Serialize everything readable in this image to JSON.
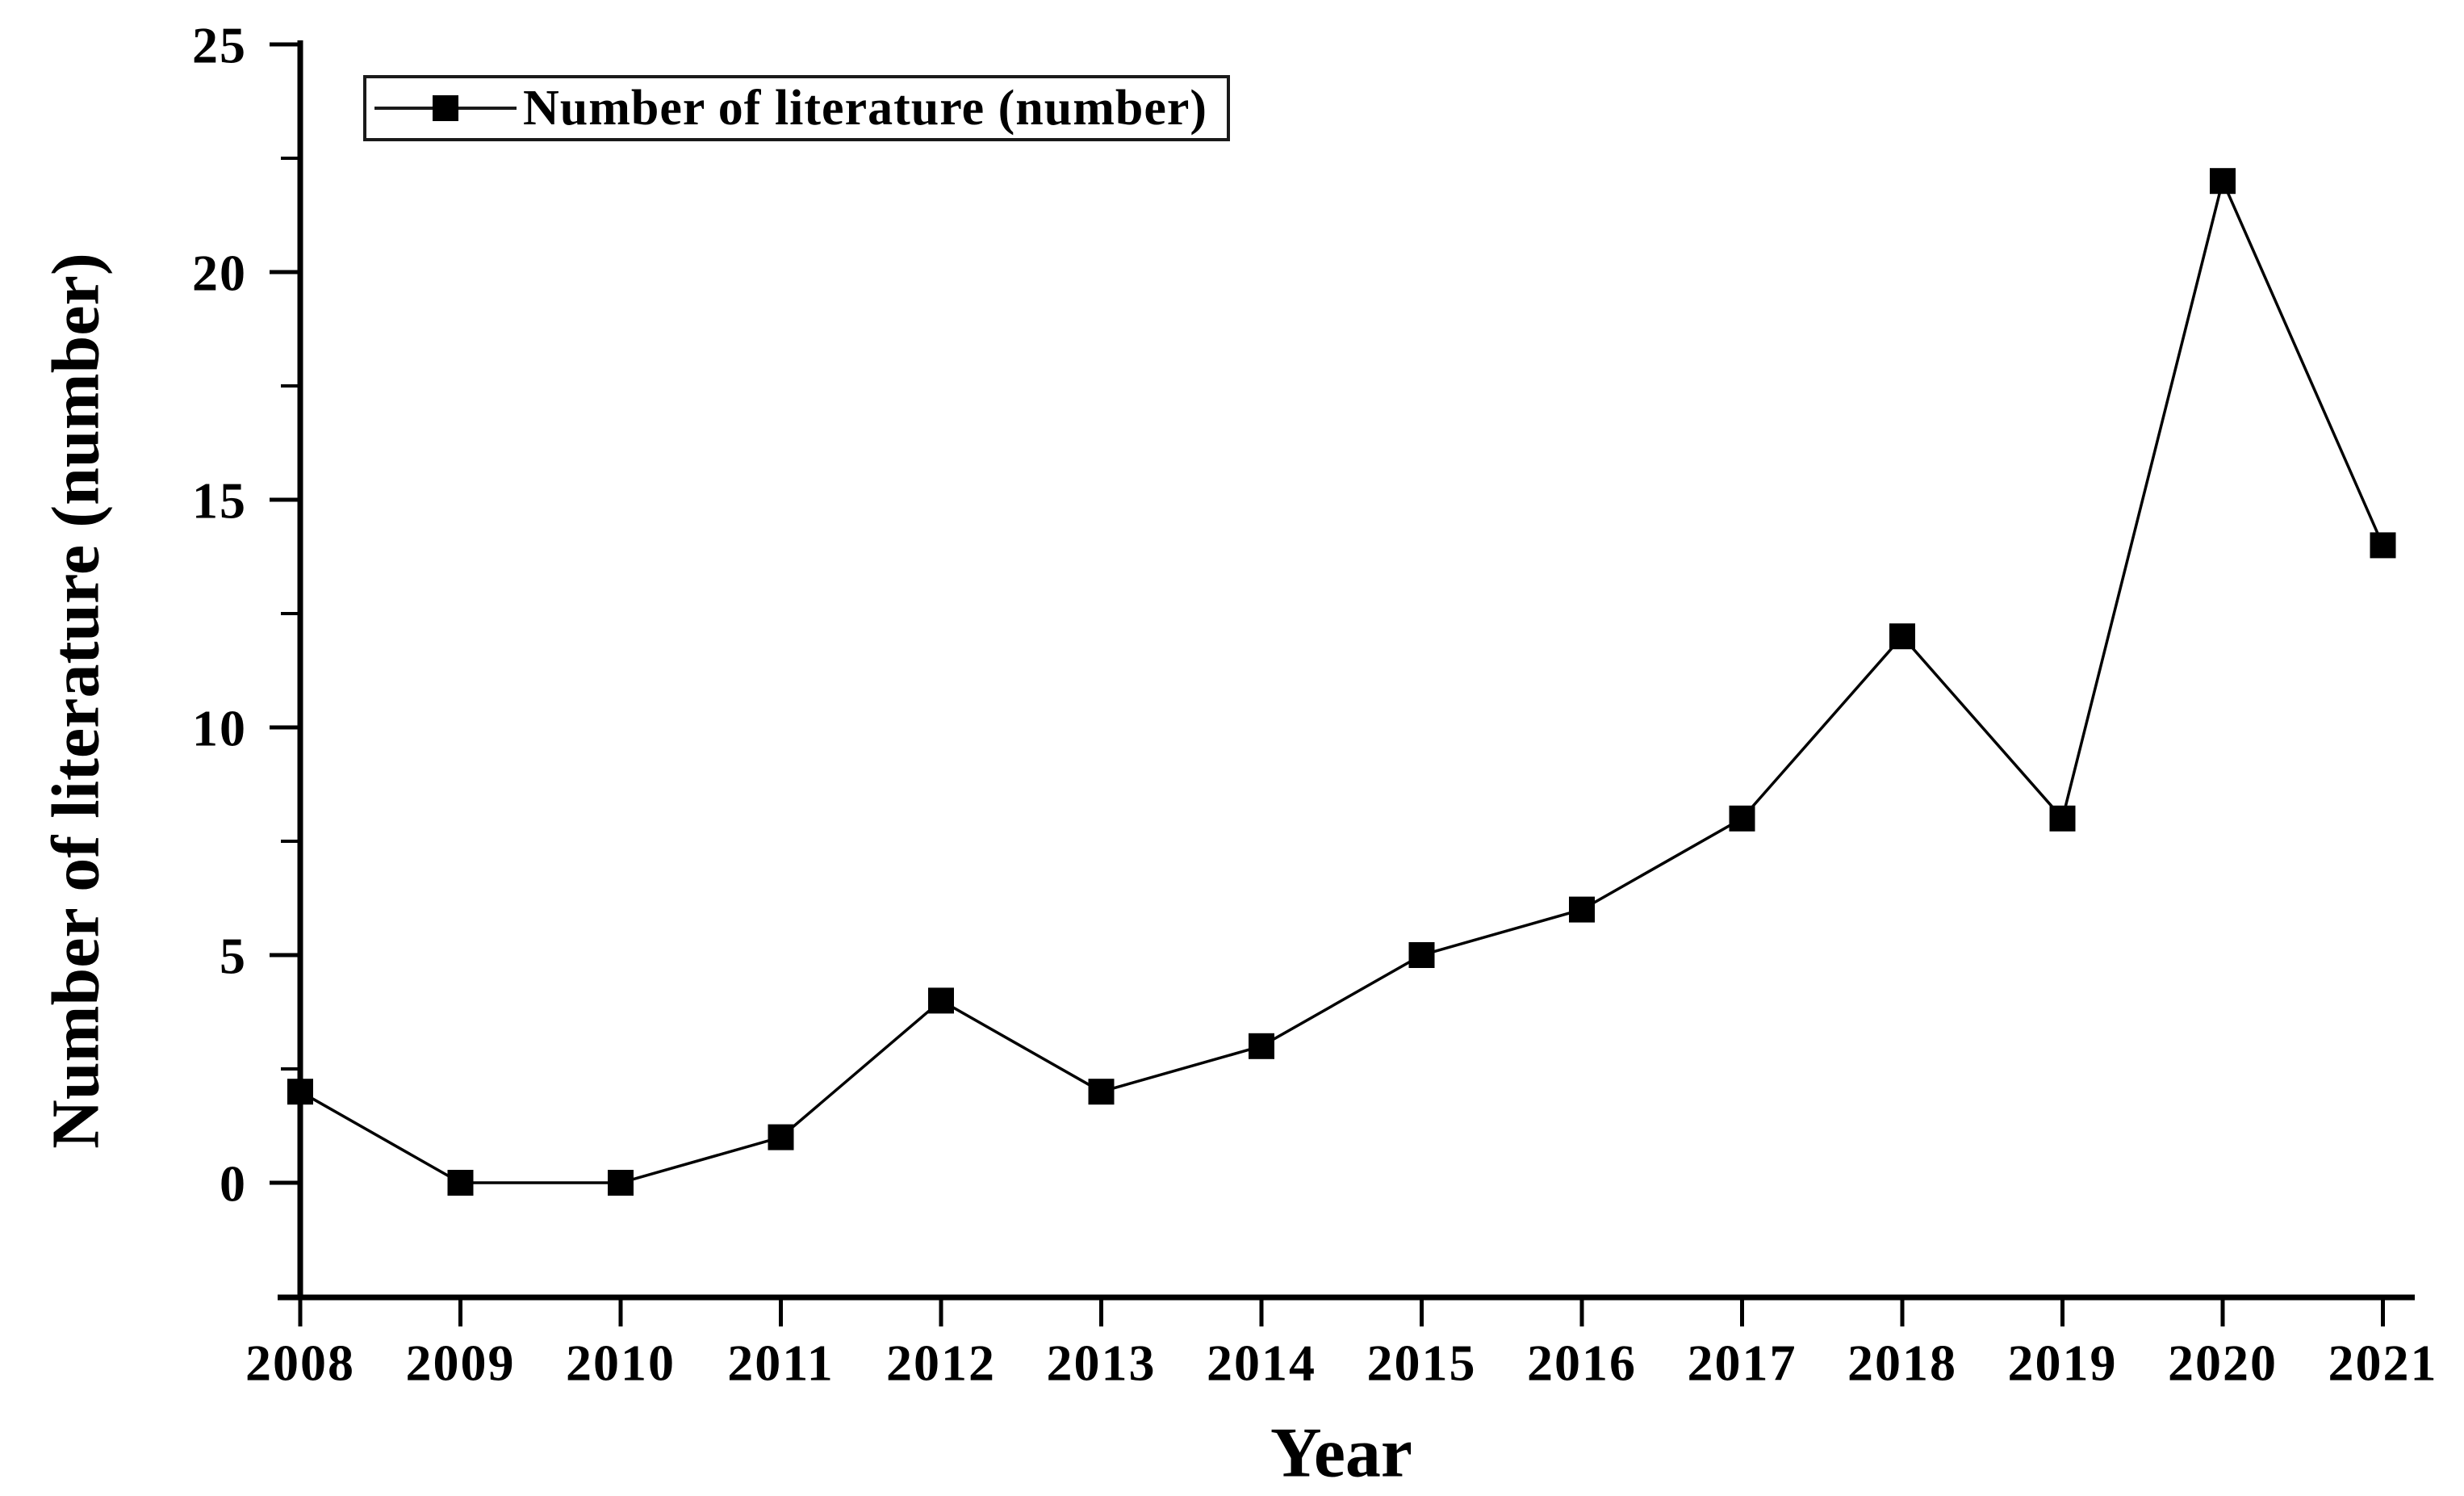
{
  "figure": {
    "background": "#ffffff",
    "ink_color": "#000000",
    "legend_border_color": "#1a1a1a"
  },
  "legend": {
    "label": "Number of literature (number)",
    "position": "top-left",
    "marker": "filled-square-on-line"
  },
  "chart_data": {
    "type": "line",
    "categories": [
      "2008",
      "2009",
      "2010",
      "2011",
      "2012",
      "2013",
      "2014",
      "2015",
      "2016",
      "2017",
      "2018",
      "2019",
      "2020",
      "2021"
    ],
    "series": [
      {
        "name": "Number of literature (number)",
        "values": [
          2,
          0,
          0,
          1,
          4,
          2,
          3,
          5,
          6,
          8,
          12,
          8,
          22,
          14
        ],
        "color": "#000000",
        "marker": "square"
      }
    ],
    "title": "",
    "xlabel": "Year",
    "ylabel": "Number of literature (number)",
    "ylim": [
      -2.5,
      25
    ],
    "yticks": [
      0,
      5,
      10,
      15,
      20,
      25
    ],
    "y_minor_ticks": [
      2.5,
      7.5,
      12.5,
      17.5,
      22.5
    ],
    "grid": false,
    "legend_position": "top-left"
  }
}
